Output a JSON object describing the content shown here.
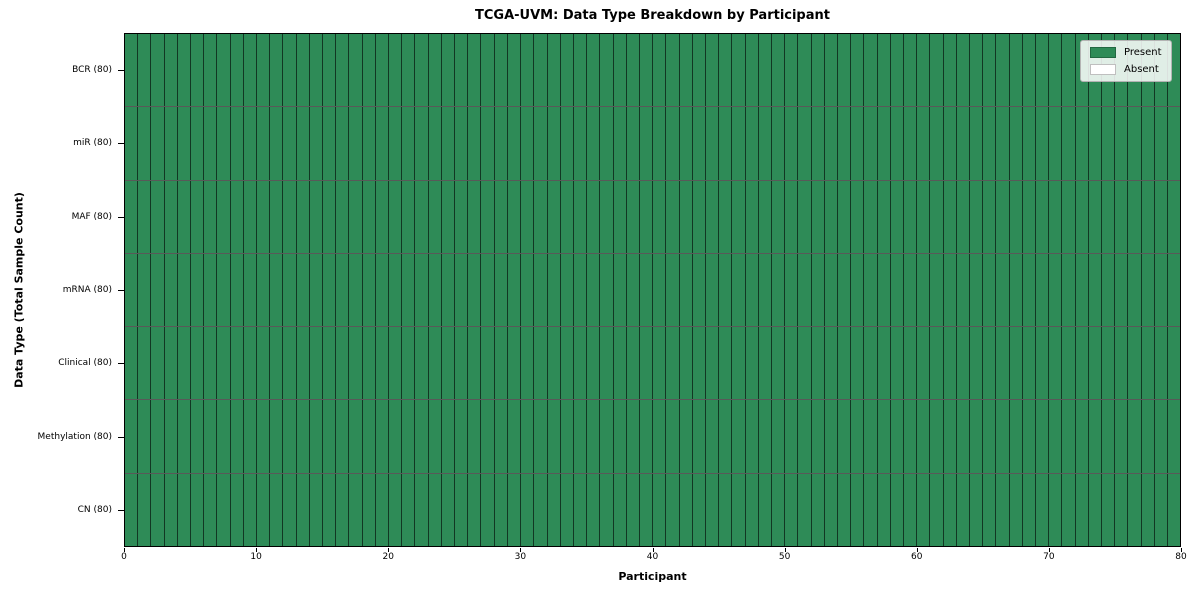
{
  "chart_data": {
    "type": "heatmap",
    "title": "TCGA-UVM: Data Type Breakdown by Participant",
    "xlabel": "Participant",
    "ylabel": "Data Type (Total Sample Count)",
    "x_ticks": [
      0,
      10,
      20,
      30,
      40,
      50,
      60,
      70,
      80
    ],
    "xlim": [
      0,
      80
    ],
    "n_participants": 80,
    "rows": [
      {
        "label": "BCR (80)",
        "present_count": 80,
        "absent_count": 0
      },
      {
        "label": "miR (80)",
        "present_count": 80,
        "absent_count": 0
      },
      {
        "label": "MAF (80)",
        "present_count": 80,
        "absent_count": 0
      },
      {
        "label": "mRNA (80)",
        "present_count": 80,
        "absent_count": 0
      },
      {
        "label": "Clinical (80)",
        "present_count": 80,
        "absent_count": 0
      },
      {
        "label": "Methylation (80)",
        "present_count": 80,
        "absent_count": 0
      },
      {
        "label": "CN (80)",
        "present_count": 80,
        "absent_count": 0
      }
    ],
    "legend": {
      "position": "upper right",
      "entries": [
        {
          "label": "Present",
          "color": "#2e8b57"
        },
        {
          "label": "Absent",
          "color": "#ffffff"
        }
      ]
    },
    "colors": {
      "present": "#2e8b57",
      "absent": "#ffffff",
      "cell_edge": "#000000",
      "axis": "#000000",
      "background": "#ffffff"
    },
    "grid": "cell-borders"
  }
}
